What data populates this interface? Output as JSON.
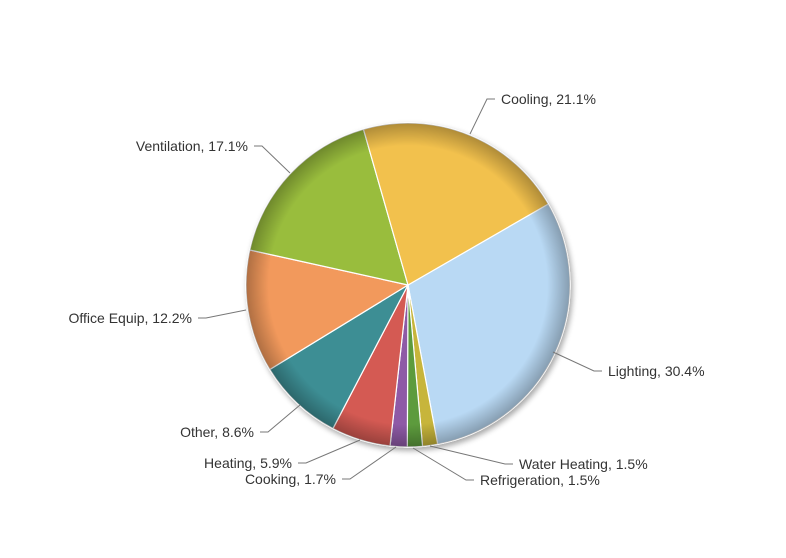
{
  "chart_data": {
    "type": "pie",
    "title": "",
    "start_angle_deg": 60,
    "legend": "none",
    "slices": [
      {
        "name": "Lighting",
        "label": "Lighting, 30.4%",
        "value": 30.4,
        "color": "#B9D9F4"
      },
      {
        "name": "Water Heating",
        "label": "Water Heating, 1.5%",
        "value": 1.5,
        "color": "#C7B53A"
      },
      {
        "name": "Refrigeration",
        "label": "Refrigeration, 1.5%",
        "value": 1.5,
        "color": "#5D9B3D"
      },
      {
        "name": "Cooking",
        "label": "Cooking, 1.7%",
        "value": 1.7,
        "color": "#8E5AA6"
      },
      {
        "name": "Heating",
        "label": "Heating, 5.9%",
        "value": 5.9,
        "color": "#D45A52"
      },
      {
        "name": "Other",
        "label": "Other, 8.6%",
        "value": 8.6,
        "color": "#3E8E94"
      },
      {
        "name": "Office Equip",
        "label": "Office Equip, 12.2%",
        "value": 12.2,
        "color": "#F2995B"
      },
      {
        "name": "Ventilation",
        "label": "Ventilation, 17.1%",
        "value": 17.1,
        "color": "#99BD3C"
      },
      {
        "name": "Cooling",
        "label": "Cooling, 21.1%",
        "value": 21.1,
        "color": "#F2C14E"
      }
    ]
  }
}
